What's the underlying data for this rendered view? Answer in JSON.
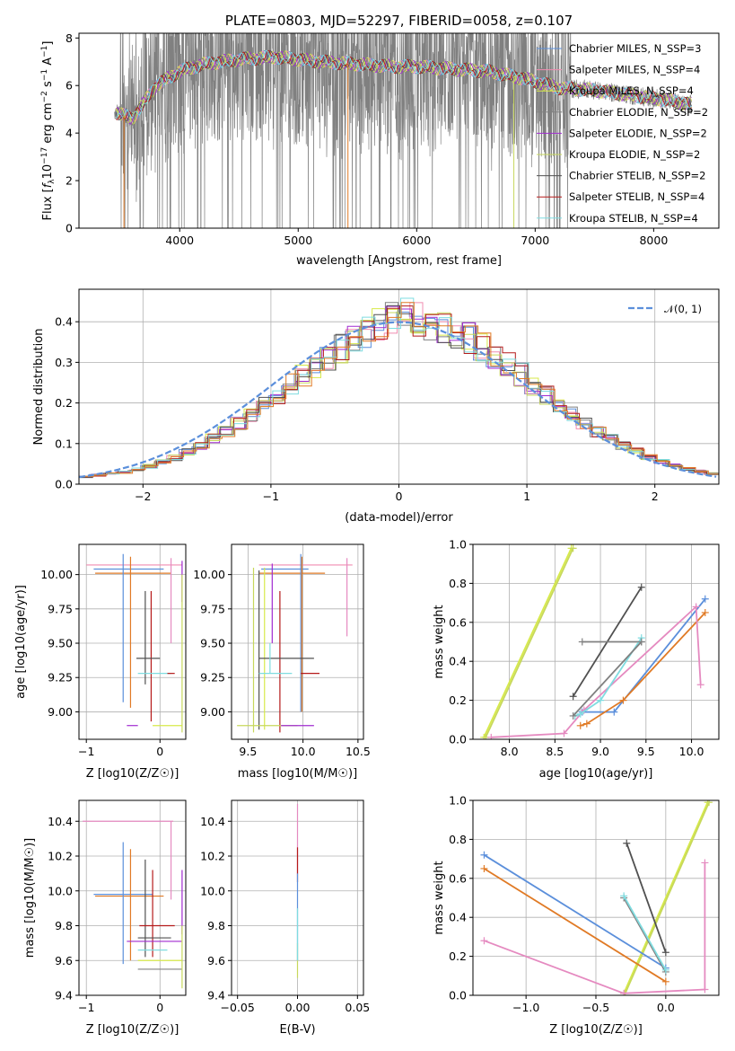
{
  "colors": {
    "Chabrier MILES": "#5b8fdb",
    "Salpeter MILES": "#f08cb0",
    "Kroupa MILES": "#d7ea4a",
    "Chabrier ELODIE": "#808080",
    "Salpeter ELODIE": "#a12bd1",
    "Kroupa ELODIE": "#c7d85c",
    "Chabrier STELIB": "#505050",
    "Salpeter STELIB": "#b51a1a",
    "Kroupa STELIB": "#7fdce0",
    "orange": "#e07a25",
    "pink": "#e58ac0",
    "normal": "#5b8fdb"
  },
  "chart_data": [
    {
      "id": "spectrum",
      "type": "line",
      "title": "PLATE=0803, MJD=52297, FIBERID=0058, z=0.107",
      "xlabel": "wavelength [Angstrom, rest frame]",
      "ylabel": "Flux [f_λ 10^-17 erg cm^-2 s^-1 A^-1]",
      "xlim": [
        3150,
        8550
      ],
      "ylim": [
        0,
        8.2
      ],
      "xticks": [
        "4000",
        "5000",
        "6000",
        "7000",
        "8000"
      ],
      "yticks": [
        "0",
        "2",
        "4",
        "6",
        "8"
      ],
      "legend": [
        {
          "name": "Chabrier MILES, N_SSP=3",
          "color": "#5b8fdb"
        },
        {
          "name": "Salpeter MILES, N_SSP=4",
          "color": "#f08cb0"
        },
        {
          "name": "Kroupa MILES, N_SSP=4",
          "color": "#d7ea4a"
        },
        {
          "name": "Chabrier ELODIE, N_SSP=2",
          "color": "#808080"
        },
        {
          "name": "Salpeter ELODIE, N_SSP=2",
          "color": "#a12bd1"
        },
        {
          "name": "Kroupa ELODIE, N_SSP=2",
          "color": "#c7d85c"
        },
        {
          "name": "Chabrier STELIB, N_SSP=2",
          "color": "#505050"
        },
        {
          "name": "Salpeter STELIB, N_SSP=4",
          "color": "#b51a1a"
        },
        {
          "name": "Kroupa STELIB, N_SSP=4",
          "color": "#7fdce0"
        }
      ],
      "legend_placement": "right",
      "data_range_x": [
        3450,
        8320
      ],
      "continuum": [
        [
          3450,
          4.9
        ],
        [
          3600,
          4.6
        ],
        [
          3800,
          6.0
        ],
        [
          4000,
          6.6
        ],
        [
          4200,
          6.9
        ],
        [
          4500,
          7.1
        ],
        [
          4800,
          7.2
        ],
        [
          5000,
          7.1
        ],
        [
          5200,
          7.0
        ],
        [
          5500,
          6.9
        ],
        [
          5800,
          6.8
        ],
        [
          6000,
          6.8
        ],
        [
          6300,
          6.7
        ],
        [
          6600,
          6.6
        ],
        [
          6900,
          6.3
        ],
        [
          7200,
          5.9
        ],
        [
          7500,
          5.8
        ],
        [
          7800,
          5.6
        ],
        [
          8100,
          5.4
        ],
        [
          8320,
          5.2
        ]
      ]
    },
    {
      "id": "residuals",
      "type": "bar",
      "xlabel": "(data-model)/error",
      "ylabel": "Normed distribution",
      "xlim": [
        -2.5,
        2.5
      ],
      "ylim": [
        0,
        0.48
      ],
      "xticks": [
        "−2",
        "−1",
        "0",
        "1",
        "2"
      ],
      "yticks": [
        "0.0",
        "0.1",
        "0.2",
        "0.3",
        "0.4"
      ],
      "legend": [
        {
          "name": "𝒩(0, 1)",
          "color": "#5b8fdb"
        }
      ],
      "legend_placement": "top-right",
      "bin_width": 0.1,
      "bins_start": -2.5,
      "histogram_template": [
        0.018,
        0.022,
        0.026,
        0.03,
        0.036,
        0.044,
        0.054,
        0.065,
        0.08,
        0.095,
        0.112,
        0.13,
        0.15,
        0.172,
        0.195,
        0.22,
        0.245,
        0.265,
        0.29,
        0.315,
        0.335,
        0.355,
        0.375,
        0.395,
        0.41,
        0.42,
        0.405,
        0.395,
        0.385,
        0.375,
        0.36,
        0.34,
        0.32,
        0.295,
        0.27,
        0.245,
        0.22,
        0.195,
        0.172,
        0.15,
        0.13,
        0.112,
        0.095,
        0.08,
        0.066,
        0.055,
        0.045,
        0.038,
        0.032,
        0.026
      ]
    },
    {
      "id": "age-vs-Z",
      "type": "scatter",
      "xlabel": "Z [log10(Z/Z☉)]",
      "ylabel": "age  [log10(age/yr)]",
      "xlim": [
        -1.1,
        0.35
      ],
      "ylim": [
        8.8,
        10.22
      ],
      "xticks": [
        "−1",
        "0"
      ],
      "yticks": [
        "9.00",
        "9.25",
        "9.50",
        "9.75",
        "10.00"
      ],
      "segments": [
        {
          "color": "#f08cb0",
          "h": [
            -1.0,
            0.3,
            10.07
          ]
        },
        {
          "color": "#5b8fdb",
          "h": [
            -0.9,
            0.05,
            10.04
          ]
        },
        {
          "color": "#e07a25",
          "h": [
            -0.88,
            0.15,
            10.01
          ]
        },
        {
          "color": "#5b8fdb",
          "v": [
            -0.5,
            9.07,
            10.15
          ]
        },
        {
          "color": "#e07a25",
          "v": [
            -0.4,
            9.03,
            10.13
          ]
        },
        {
          "color": "#e58ac0",
          "v": [
            0.15,
            9.5,
            10.12
          ]
        },
        {
          "color": "#505050",
          "v": [
            -0.2,
            9.2,
            9.88
          ]
        },
        {
          "color": "#b51a1a",
          "v": [
            -0.12,
            8.93,
            9.88
          ]
        },
        {
          "color": "#505050",
          "h": [
            -0.32,
            0.0,
            9.39
          ]
        },
        {
          "color": "#7fdce0",
          "h": [
            -0.3,
            0.15,
            9.28
          ]
        },
        {
          "color": "#b51a1a",
          "h": [
            0.1,
            0.2,
            9.28
          ]
        },
        {
          "color": "#a12bd1",
          "v": [
            0.3,
            9.8,
            10.1
          ]
        },
        {
          "color": "#c7d85c",
          "v": [
            0.3,
            8.85,
            10.0
          ]
        },
        {
          "color": "#d7ea4a",
          "h": [
            -0.1,
            0.3,
            8.9
          ]
        },
        {
          "color": "#a12bd1",
          "h": [
            -0.45,
            -0.3,
            8.9
          ]
        }
      ]
    },
    {
      "id": "age-vs-mass",
      "type": "scatter",
      "xlabel": "mass [log10(M/M☉)]",
      "ylabel": "",
      "xlim": [
        9.35,
        10.55
      ],
      "ylim": [
        8.8,
        10.22
      ],
      "xticks": [
        "9.5",
        "10.0",
        "10.5"
      ],
      "yticks": [
        "9.00",
        "9.25",
        "9.50",
        "9.75",
        "10.00"
      ],
      "segments": [
        {
          "color": "#f08cb0",
          "h": [
            9.6,
            10.45,
            10.07
          ]
        },
        {
          "color": "#5b8fdb",
          "h": [
            9.62,
            10.05,
            10.04
          ]
        },
        {
          "color": "#e07a25",
          "h": [
            9.6,
            10.2,
            10.01
          ]
        },
        {
          "color": "#c7d85c",
          "v": [
            9.55,
            8.85,
            10.05
          ]
        },
        {
          "color": "#505050",
          "v": [
            9.6,
            8.87,
            10.03
          ]
        },
        {
          "color": "#d7ea4a",
          "v": [
            9.65,
            8.87,
            10.05
          ]
        },
        {
          "color": "#a12bd1",
          "v": [
            9.72,
            9.5,
            10.08
          ]
        },
        {
          "color": "#b51a1a",
          "v": [
            9.79,
            8.85,
            9.88
          ]
        },
        {
          "color": "#5b8fdb",
          "v": [
            9.98,
            9.0,
            10.15
          ]
        },
        {
          "color": "#e07a25",
          "v": [
            9.99,
            9.0,
            10.13
          ]
        },
        {
          "color": "#e58ac0",
          "v": [
            10.4,
            9.55,
            10.12
          ]
        },
        {
          "color": "#505050",
          "h": [
            9.6,
            10.1,
            9.39
          ]
        },
        {
          "color": "#7fdce0",
          "h": [
            9.6,
            9.9,
            9.28
          ]
        },
        {
          "color": "#b51a1a",
          "h": [
            9.98,
            10.15,
            9.28
          ]
        },
        {
          "color": "#7fdce0",
          "v": [
            9.7,
            9.28,
            9.5
          ]
        },
        {
          "color": "#c7d85c",
          "h": [
            9.4,
            9.95,
            8.9
          ]
        },
        {
          "color": "#a12bd1",
          "h": [
            9.8,
            10.1,
            8.9
          ]
        }
      ]
    },
    {
      "id": "mass-weight-vs-age",
      "type": "line",
      "xlabel": "age  [log10(age/yr)]",
      "ylabel": "mass weight",
      "xlim": [
        7.6,
        10.3
      ],
      "ylim": [
        0,
        1.0
      ],
      "xticks": [
        "8.0",
        "8.5",
        "9.0",
        "9.5",
        "10.0"
      ],
      "yticks": [
        "0.0",
        "0.2",
        "0.4",
        "0.6",
        "0.8",
        "1.0"
      ],
      "series": [
        {
          "color": "#d7ea4a",
          "x": [
            7.72,
            8.68
          ],
          "y": [
            0.01,
            0.98
          ]
        },
        {
          "color": "#c7d85c",
          "x": [
            7.74,
            8.7
          ],
          "y": [
            0.01,
            0.98
          ]
        },
        {
          "color": "#505050",
          "x": [
            8.7,
            9.45
          ],
          "y": [
            0.22,
            0.78
          ]
        },
        {
          "color": "#808080",
          "x": [
            8.8,
            9.45
          ],
          "y": [
            0.5,
            0.5
          ]
        },
        {
          "color": "#5b8fdb",
          "x": [
            8.8,
            9.15,
            10.15
          ],
          "y": [
            0.14,
            0.14,
            0.72
          ]
        },
        {
          "color": "#e07a25",
          "x": [
            8.78,
            8.85,
            9.25,
            10.15
          ],
          "y": [
            0.07,
            0.08,
            0.2,
            0.65
          ]
        },
        {
          "color": "#e58ac0",
          "x": [
            7.8,
            8.6,
            8.82,
            10.05,
            10.1
          ],
          "y": [
            0.01,
            0.03,
            0.15,
            0.68,
            0.28
          ]
        },
        {
          "color": "#7fdce0",
          "x": [
            8.72,
            8.78,
            9.0,
            9.45
          ],
          "y": [
            0.12,
            0.13,
            0.2,
            0.52
          ]
        },
        {
          "color": "#808080",
          "x": [
            8.7,
            9.45
          ],
          "y": [
            0.12,
            0.5
          ]
        }
      ]
    },
    {
      "id": "mass-vs-Z",
      "type": "scatter",
      "xlabel": "Z [log10(Z/Z☉)]",
      "ylabel": "mass [log10(M/M☉)]",
      "xlim": [
        -1.1,
        0.35
      ],
      "ylim": [
        9.4,
        10.52
      ],
      "xticks": [
        "−1",
        "0"
      ],
      "yticks": [
        "9.4",
        "9.6",
        "9.8",
        "10.0",
        "10.2",
        "10.4"
      ],
      "segments": [
        {
          "color": "#e58ac0",
          "h": [
            -1.05,
            0.18,
            10.4
          ]
        },
        {
          "color": "#5b8fdb",
          "h": [
            -0.9,
            -0.1,
            9.98
          ]
        },
        {
          "color": "#e07a25",
          "h": [
            -0.88,
            0.05,
            9.97
          ]
        },
        {
          "color": "#5b8fdb",
          "v": [
            -0.5,
            9.58,
            10.28
          ]
        },
        {
          "color": "#e07a25",
          "v": [
            -0.4,
            9.6,
            10.24
          ]
        },
        {
          "color": "#e58ac0",
          "v": [
            0.15,
            9.95,
            10.4
          ]
        },
        {
          "color": "#505050",
          "v": [
            -0.2,
            9.62,
            10.18
          ]
        },
        {
          "color": "#b51a1a",
          "v": [
            -0.1,
            9.62,
            10.12
          ]
        },
        {
          "color": "#505050",
          "h": [
            -0.3,
            0.15,
            9.73
          ]
        },
        {
          "color": "#b51a1a",
          "h": [
            -0.28,
            0.2,
            9.8
          ]
        },
        {
          "color": "#a12bd1",
          "h": [
            -0.45,
            0.3,
            9.71
          ]
        },
        {
          "color": "#7fdce0",
          "h": [
            -0.3,
            0.1,
            9.66
          ]
        },
        {
          "color": "#a12bd1",
          "v": [
            0.3,
            9.75,
            10.12
          ]
        },
        {
          "color": "#d7ea4a",
          "h": [
            -0.3,
            0.3,
            9.6
          ]
        },
        {
          "color": "#808080",
          "h": [
            -0.3,
            0.3,
            9.55
          ]
        },
        {
          "color": "#c7d85c",
          "v": [
            0.3,
            9.44,
            9.8
          ]
        }
      ]
    },
    {
      "id": "mass-vs-ebv",
      "type": "scatter",
      "xlabel": "E(B-V)",
      "ylabel": "",
      "xlim": [
        -0.055,
        0.055
      ],
      "ylim": [
        9.4,
        10.52
      ],
      "xticks": [
        "−0.05",
        "0.00",
        "0.05"
      ],
      "yticks": [
        "9.4",
        "9.6",
        "9.8",
        "10.0",
        "10.2",
        "10.4"
      ],
      "segments": [
        {
          "color": "#e58ac0",
          "v": [
            0.0,
            10.1,
            10.5
          ]
        },
        {
          "color": "#b51a1a",
          "v": [
            0.0,
            10.05,
            10.25
          ]
        },
        {
          "color": "#5b8fdb",
          "v": [
            0.0,
            9.6,
            10.1
          ]
        },
        {
          "color": "#c7d85c",
          "v": [
            0.0,
            9.5,
            9.7
          ]
        },
        {
          "color": "#7fdce0",
          "v": [
            0.0,
            9.6,
            9.9
          ]
        }
      ]
    },
    {
      "id": "mass-weight-vs-Z",
      "type": "line",
      "xlabel": "Z [log10(Z/Z☉)]",
      "ylabel": "mass weight",
      "xlim": [
        -1.38,
        0.38
      ],
      "ylim": [
        0,
        1.0
      ],
      "xticks": [
        "−1.0",
        "−0.5",
        "0.0"
      ],
      "yticks": [
        "0.0",
        "0.2",
        "0.4",
        "0.6",
        "0.8",
        "1.0"
      ],
      "series": [
        {
          "color": "#d7ea4a",
          "x": [
            -0.3,
            0.3
          ],
          "y": [
            0.01,
            0.99
          ]
        },
        {
          "color": "#c7d85c",
          "x": [
            -0.29,
            0.31
          ],
          "y": [
            0.01,
            0.99
          ]
        },
        {
          "color": "#5b8fdb",
          "x": [
            -1.3,
            0.0
          ],
          "y": [
            0.72,
            0.14
          ]
        },
        {
          "color": "#e07a25",
          "x": [
            -1.3,
            0.0
          ],
          "y": [
            0.65,
            0.07
          ]
        },
        {
          "color": "#e58ac0",
          "x": [
            -1.3,
            -0.3,
            0.28,
            0.28
          ],
          "y": [
            0.28,
            0.01,
            0.03,
            0.68
          ]
        },
        {
          "color": "#505050",
          "x": [
            -0.28,
            0.0
          ],
          "y": [
            0.78,
            0.22
          ]
        },
        {
          "color": "#808080",
          "x": [
            -0.3,
            0.0
          ],
          "y": [
            0.5,
            0.12
          ]
        },
        {
          "color": "#7fdce0",
          "x": [
            -0.3,
            0.0
          ],
          "y": [
            0.51,
            0.13
          ]
        }
      ]
    }
  ]
}
